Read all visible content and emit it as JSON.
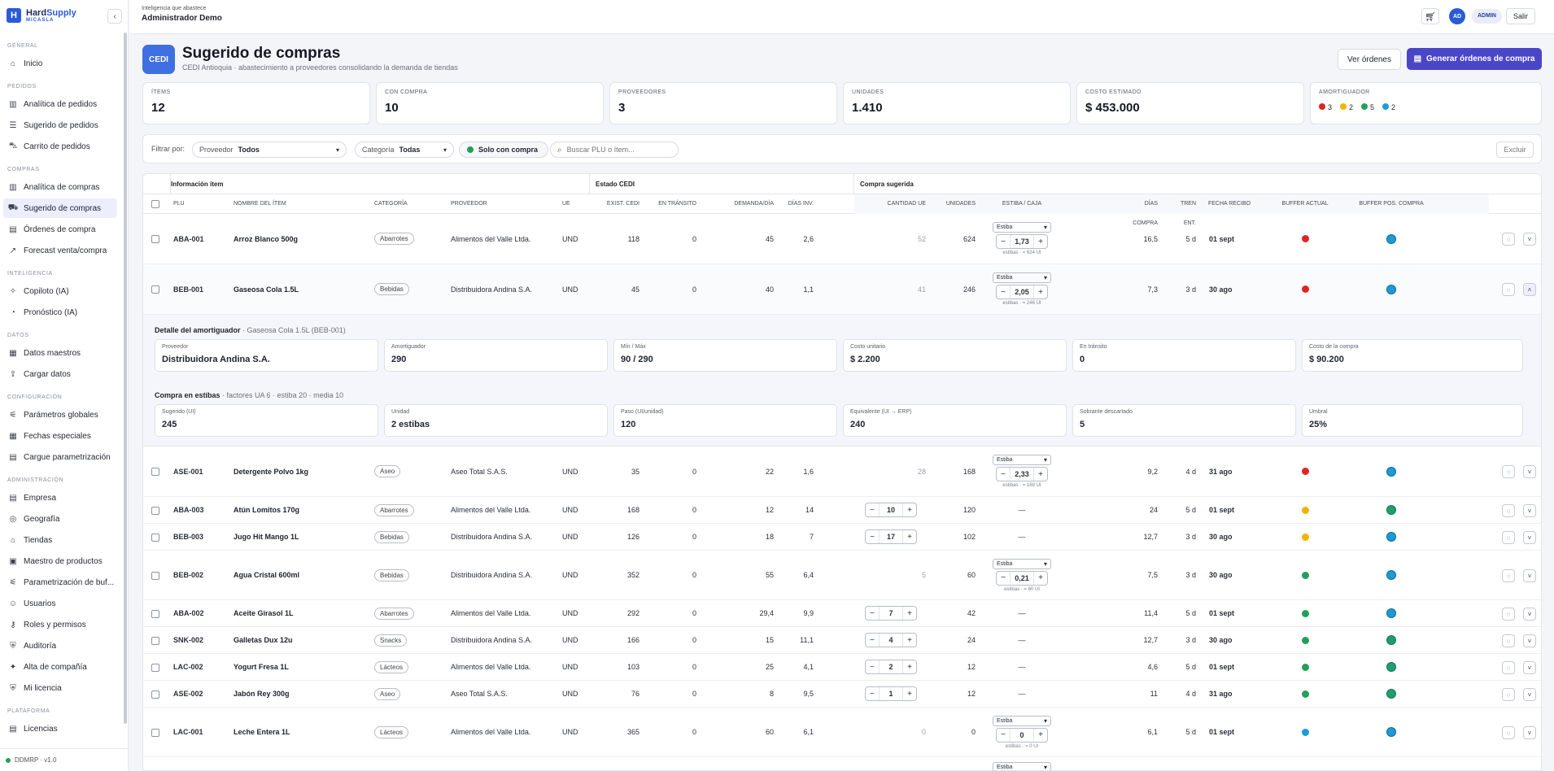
{
  "brand": {
    "name_a": "Hard",
    "name_b": "Supply",
    "sub": "MICASLA",
    "collapse_icon": "chevron-left-icon"
  },
  "sidebar": {
    "sections": [
      {
        "title": "GENERAL",
        "items": [
          {
            "label": "Inicio",
            "icon": "⌂"
          }
        ]
      },
      {
        "title": "PEDIDOS",
        "items": [
          {
            "label": "Analítica de pedidos",
            "icon": "▥"
          },
          {
            "label": "Sugerido de pedidos",
            "icon": "☰"
          },
          {
            "label": "Carrito de pedidos",
            "icon": "⛍"
          }
        ]
      },
      {
        "title": "COMPRAS",
        "items": [
          {
            "label": "Analítica de compras",
            "icon": "▥"
          },
          {
            "label": "Sugerido de compras",
            "icon": "⛟",
            "active": true
          },
          {
            "label": "Órdenes de compra",
            "icon": "▤"
          },
          {
            "label": "Forecast venta/compra",
            "icon": "↗"
          }
        ]
      },
      {
        "title": "INTELIGENCIA",
        "items": [
          {
            "label": "Copiloto (IA)",
            "icon": "✧"
          },
          {
            "label": "Pronóstico (IA)",
            "icon": "◔"
          }
        ]
      },
      {
        "title": "DATOS",
        "items": [
          {
            "label": "Datos maestros",
            "icon": "▦"
          },
          {
            "label": "Cargar datos",
            "icon": "⇪"
          }
        ]
      },
      {
        "title": "CONFIGURACIÓN",
        "items": [
          {
            "label": "Parámetros globales",
            "icon": "⚟"
          },
          {
            "label": "Fechas especiales",
            "icon": "▦"
          },
          {
            "label": "Cargue parametrización",
            "icon": "▤"
          }
        ]
      },
      {
        "title": "ADMINISTRACIÓN",
        "items": [
          {
            "label": "Empresa",
            "icon": "▤"
          },
          {
            "label": "Geografía",
            "icon": "◎"
          },
          {
            "label": "Tiendas",
            "icon": "⌂"
          },
          {
            "label": "Maestro de productos",
            "icon": "▣"
          },
          {
            "label": "Parametrización de buf...",
            "icon": "⚟"
          },
          {
            "label": "Usuarios",
            "icon": "☺"
          },
          {
            "label": "Roles y permisos",
            "icon": "⚷"
          },
          {
            "label": "Auditoría",
            "icon": "⛨"
          },
          {
            "label": "Alta de compañía",
            "icon": "✦"
          },
          {
            "label": "Mi licencia",
            "icon": "⛨"
          }
        ]
      },
      {
        "title": "PLATAFORMA",
        "items": [
          {
            "label": "Licencias",
            "icon": "▤"
          }
        ]
      }
    ],
    "footer": "DDMRP · v1.0",
    "footer_color": "#22a05a"
  },
  "topbar": {
    "subtitle": "Inteligencia que abastece",
    "title": "Administrador Demo",
    "avatar": "AD",
    "role": "ADMIN",
    "logout": "Salir"
  },
  "page": {
    "badge": "CEDI",
    "title": "Sugerido de compras",
    "subtitle": "CEDI Antioquia · abastecimiento a proveedores consolidando la demanda de tiendas",
    "btn_view": "Ver órdenes",
    "btn_generate": "Generar órdenes de compra"
  },
  "cards": [
    {
      "label": "ÍTEMS",
      "value": "12"
    },
    {
      "label": "CON COMPRA",
      "value": "10"
    },
    {
      "label": "PROVEEDORES",
      "value": "3"
    },
    {
      "label": "UNIDADES",
      "value": "1.410"
    },
    {
      "label": "COSTO ESTIMADO",
      "value": "$ 453.000"
    }
  ],
  "amortiguador": {
    "label": "AMORTIGUADOR",
    "items": [
      {
        "color": "#e02424",
        "count": "3"
      },
      {
        "color": "#f0b400",
        "count": "2"
      },
      {
        "color": "#22a05a",
        "count": "5"
      },
      {
        "color": "#1e9ad6",
        "count": "2"
      }
    ]
  },
  "filters": {
    "label": "Filtrar por:",
    "provider_key": "Proveedor",
    "provider_value": "Todos",
    "category_key": "Categoría",
    "category_value": "Todas",
    "only_purchase": "Solo con compra",
    "only_color": "#22a05a",
    "search_placeholder": "Buscar PLU o ítem...",
    "exclude": "Excluir"
  },
  "table": {
    "groups": {
      "info": "Información ítem",
      "cedi": "Estado CEDI",
      "buy": "Compra sugerida"
    },
    "headers": {
      "plu": "PLU",
      "name": "NOMBRE DEL ÍTEM",
      "cat": "CATEGORÍA",
      "prov": "PROVEEDOR",
      "ue": "UE",
      "exist": "EXIST. CEDI",
      "transit": "EN TRÁNSITO",
      "demand": "DEMANDA/DÍA",
      "days_inv": "DÍAS INV.",
      "qty_ue": "CANTIDAD UE",
      "units": "UNIDADES",
      "estiba": "ESTIBA / CAJA",
      "days_buy": "DÍAS COMPRA",
      "lead": "TREN ENT.",
      "date": "FECHA RECIBO",
      "buf_now": "BUFFER ACTUAL",
      "buf_after": "BUFFER POS. COMPRA"
    },
    "rows": [
      {
        "plu": "ABA-001",
        "name": "Arroz Blanco 500g",
        "cat": "Abarrotes",
        "prov": "Alimentos del Valle Ltda.",
        "ue": "UND",
        "exist": "118",
        "transit": "0",
        "demand": "45",
        "days_inv": "2,6",
        "mode": "estiba",
        "qty": "52",
        "units": "624",
        "est_select": "Estiba",
        "est_value": "1,73",
        "est_note": "estibas · = 624 UI",
        "days_buy": "16,5",
        "lead": "5 d",
        "date": "01 sept",
        "buf_now": "#e02424",
        "buf_after": "#1e9ad6"
      },
      {
        "plu": "BEB-001",
        "name": "Gaseosa Cola 1.5L",
        "cat": "Bebidas",
        "prov": "Distribuidora Andina S.A.",
        "ue": "UND",
        "exist": "45",
        "transit": "0",
        "demand": "40",
        "days_inv": "1,1",
        "mode": "estiba",
        "qty": "41",
        "units": "246",
        "est_select": "Estiba",
        "est_value": "2,05",
        "est_note": "estibas · = 246 UI",
        "days_buy": "7,3",
        "lead": "3 d",
        "date": "30 ago",
        "buf_now": "#e02424",
        "buf_after": "#1e9ad6",
        "expanded": true
      },
      {
        "plu": "ASE-001",
        "name": "Detergente Polvo 1kg",
        "cat": "Aseo",
        "prov": "Aseo Total S.A.S.",
        "ue": "UND",
        "exist": "35",
        "transit": "0",
        "demand": "22",
        "days_inv": "1,6",
        "mode": "estiba",
        "qty": "28",
        "units": "168",
        "est_select": "Estiba",
        "est_value": "2,33",
        "est_note": "estibas · = 168 UI",
        "days_buy": "9,2",
        "lead": "4 d",
        "date": "31 ago",
        "buf_now": "#e02424",
        "buf_after": "#1e9ad6"
      },
      {
        "plu": "ABA-003",
        "name": "Atún Lomitos 170g",
        "cat": "Abarrotes",
        "prov": "Alimentos del Valle Ltda.",
        "ue": "UND",
        "exist": "168",
        "transit": "0",
        "demand": "12",
        "days_inv": "14",
        "mode": "step",
        "qty": "10",
        "units": "120",
        "est_text": "—",
        "days_buy": "24",
        "lead": "5 d",
        "date": "01 sept",
        "buf_now": "#f0b400",
        "buf_after": "#22a05a"
      },
      {
        "plu": "BEB-003",
        "name": "Jugo Hit Mango 1L",
        "cat": "Bebidas",
        "prov": "Distribuidora Andina S.A.",
        "ue": "UND",
        "exist": "126",
        "transit": "0",
        "demand": "18",
        "days_inv": "7",
        "mode": "step",
        "qty": "17",
        "units": "102",
        "est_text": "—",
        "days_buy": "12,7",
        "lead": "3 d",
        "date": "30 ago",
        "buf_now": "#f0b400",
        "buf_after": "#1e9ad6"
      },
      {
        "plu": "BEB-002",
        "name": "Agua Cristal 600ml",
        "cat": "Bebidas",
        "prov": "Distribuidora Andina S.A.",
        "ue": "UND",
        "exist": "352",
        "transit": "0",
        "demand": "55",
        "days_inv": "6,4",
        "mode": "estiba",
        "qty": "5",
        "units": "60",
        "est_select": "Estiba",
        "est_value": "0,21",
        "est_note": "estibas · = 60 UI",
        "days_buy": "7,5",
        "lead": "3 d",
        "date": "30 ago",
        "buf_now": "#22a05a",
        "buf_after": "#1e9ad6"
      },
      {
        "plu": "ABA-002",
        "name": "Aceite Girasol 1L",
        "cat": "Abarrotes",
        "prov": "Alimentos del Valle Ltda.",
        "ue": "UND",
        "exist": "292",
        "transit": "0",
        "demand": "29,4",
        "days_inv": "9,9",
        "mode": "step",
        "qty": "7",
        "units": "42",
        "est_text": "—",
        "days_buy": "11,4",
        "lead": "5 d",
        "date": "01 sept",
        "buf_now": "#22a05a",
        "buf_after": "#1e9ad6"
      },
      {
        "plu": "SNK-002",
        "name": "Galletas Dux 12u",
        "cat": "Snacks",
        "prov": "Distribuidora Andina S.A.",
        "ue": "UND",
        "exist": "166",
        "transit": "0",
        "demand": "15",
        "days_inv": "11,1",
        "mode": "step",
        "qty": "4",
        "units": "24",
        "est_text": "—",
        "days_buy": "12,7",
        "lead": "3 d",
        "date": "30 ago",
        "buf_now": "#22a05a",
        "buf_after": "#22a05a"
      },
      {
        "plu": "LAC-002",
        "name": "Yogurt Fresa 1L",
        "cat": "Lácteos",
        "prov": "Alimentos del Valle Ltda.",
        "ue": "UND",
        "exist": "103",
        "transit": "0",
        "demand": "25",
        "days_inv": "4,1",
        "mode": "step",
        "qty": "2",
        "units": "12",
        "est_text": "—",
        "days_buy": "4,6",
        "lead": "5 d",
        "date": "01 sept",
        "buf_now": "#22a05a",
        "buf_after": "#22a05a"
      },
      {
        "plu": "ASE-002",
        "name": "Jabón Rey 300g",
        "cat": "Aseo",
        "prov": "Aseo Total S.A.S.",
        "ue": "UND",
        "exist": "76",
        "transit": "0",
        "demand": "8",
        "days_inv": "9,5",
        "mode": "step",
        "qty": "1",
        "units": "12",
        "est_text": "—",
        "days_buy": "11",
        "lead": "4 d",
        "date": "31 ago",
        "buf_now": "#22a05a",
        "buf_after": "#22a05a"
      },
      {
        "plu": "LAC-001",
        "name": "Leche Entera 1L",
        "cat": "Lácteos",
        "prov": "Alimentos del Valle Ltda.",
        "ue": "UND",
        "exist": "365",
        "transit": "0",
        "demand": "60",
        "days_inv": "6,1",
        "mode": "estiba",
        "qty": "0",
        "units": "0",
        "est_select": "Estiba",
        "est_value": "0",
        "est_note": "estibas · = 0 UI",
        "days_buy": "6,1",
        "lead": "5 d",
        "date": "01 sept",
        "buf_now": "#1e9ad6",
        "buf_after": "#1e9ad6"
      },
      {
        "plu": "",
        "name": "",
        "cat": "",
        "prov": "",
        "ue": "",
        "exist": "",
        "transit": "",
        "demand": "",
        "days_inv": "",
        "mode": "partial",
        "qty": "",
        "units": "",
        "est_select": "Estiba",
        "days_buy": "",
        "lead": "",
        "date": "",
        "buf_now": "",
        "buf_after": ""
      }
    ]
  },
  "detail": {
    "title": "Detalle del amortiguador",
    "title_sub": " · Gaseosa Cola 1.5L (BEB-001)",
    "cards": [
      {
        "label": "Proveedor",
        "value": "Distribuidora Andina S.A."
      },
      {
        "label": "Amortiguador",
        "value": "290"
      },
      {
        "label": "Mín / Máx",
        "value": "90 / 290"
      },
      {
        "label": "Costo unitario",
        "value": "$ 2.200"
      },
      {
        "label": "En tránsito",
        "value": "0"
      },
      {
        "label": "Costo de la compra",
        "value": "$ 90.200"
      }
    ],
    "pallet_title": "Compra en estibas",
    "pallet_sub": " · factores UA 6 · estiba 20 · media 10",
    "pallet_cards": [
      {
        "label": "Sugerido (UI)",
        "value": "245"
      },
      {
        "label": "Unidad",
        "value": "2 estibas"
      },
      {
        "label": "Paso (UI/unidad)",
        "value": "120"
      },
      {
        "label": "Equivalente (UI → ERP)",
        "value": "240"
      },
      {
        "label": "Sobrante descartado",
        "value": "5"
      },
      {
        "label": "Umbral",
        "value": "25%"
      }
    ]
  }
}
